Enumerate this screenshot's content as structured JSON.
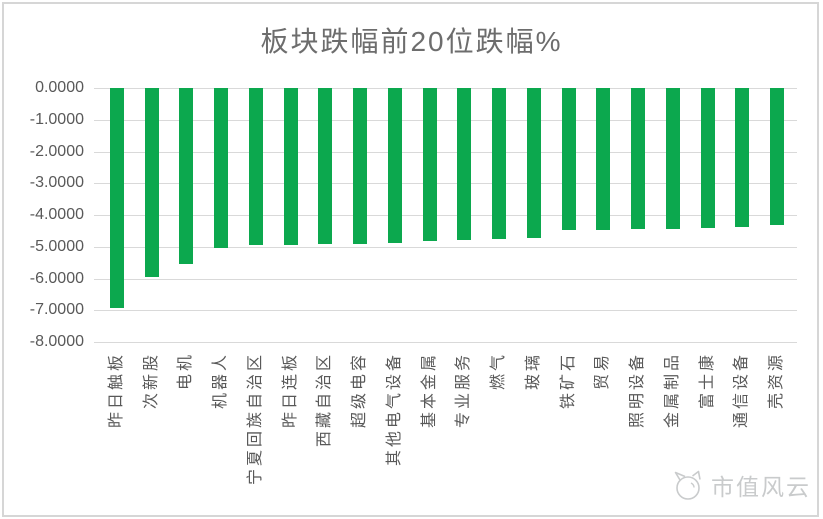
{
  "figure": {
    "title": "板块跌幅前20位跌幅%",
    "watermark_label": "市值风云"
  },
  "colors": {
    "bar": "#0ca84e",
    "grid": "#d9d9d9",
    "axis_text": "#595959",
    "title_text": "#6d6d6d",
    "watermark": "#c9cbcc",
    "border": "#d6d6d6"
  },
  "chart_data": {
    "type": "bar",
    "title": "板块跌幅前20位跌幅%",
    "categories": [
      "昨日触板",
      "次新股",
      "电机",
      "机器人",
      "宁夏回族自治区",
      "昨日连板",
      "西藏自治区",
      "超级电容",
      "其他电气设备",
      "基本金属",
      "专业服务",
      "燃气",
      "玻璃",
      "铁矿石",
      "贸易",
      "照明设备",
      "金属制品",
      "富士康",
      "通信设备",
      "壳资源"
    ],
    "values": [
      -6.94,
      -5.94,
      -5.55,
      -5.05,
      -4.95,
      -4.93,
      -4.92,
      -4.9,
      -4.87,
      -4.82,
      -4.78,
      -4.76,
      -4.73,
      -4.47,
      -4.46,
      -4.45,
      -4.44,
      -4.42,
      -4.38,
      -4.32
    ],
    "xlabel": "",
    "ylabel": "",
    "ylim": [
      -8,
      0
    ],
    "yticks": [
      0,
      -1,
      -2,
      -3,
      -4,
      -5,
      -6,
      -7,
      -8
    ],
    "ytick_labels": [
      "0.0000",
      "-1.0000",
      "-2.0000",
      "-3.0000",
      "-4.0000",
      "-5.0000",
      "-6.0000",
      "-7.0000",
      "-8.0000"
    ],
    "grid": true,
    "legend": false,
    "bar_color": "#0ca84e"
  }
}
